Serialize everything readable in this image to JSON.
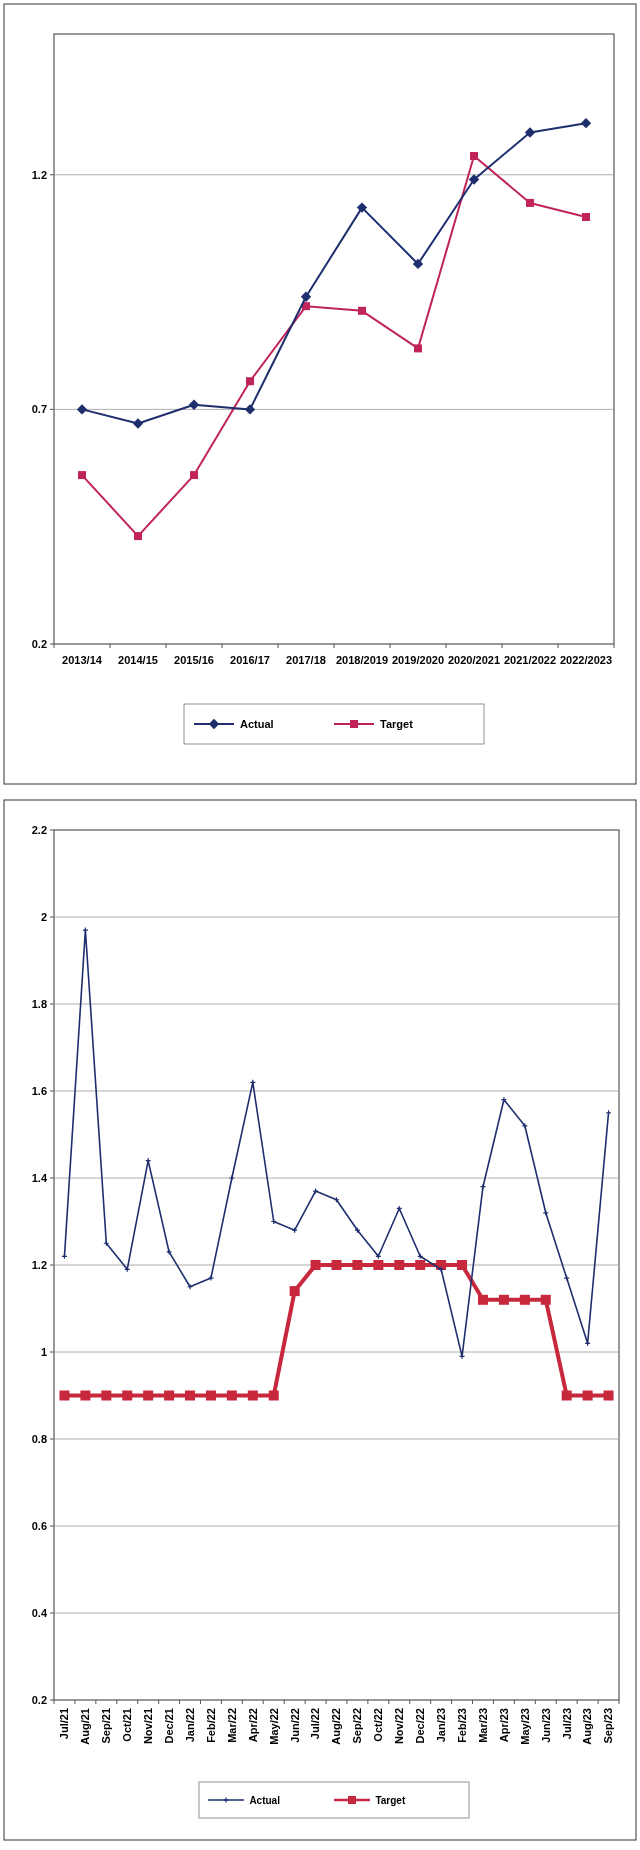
{
  "chart_data": [
    {
      "type": "line",
      "categories": [
        "2013/14",
        "2014/15",
        "2015/16",
        "2016/17",
        "2017/18",
        "2018/2019",
        "2019/2020",
        "2020/2021",
        "2021/2022",
        "2022/2023"
      ],
      "series": [
        {
          "name": "Actual",
          "color": "#1f2f6e",
          "marker": "diamond",
          "values": [
            0.7,
            0.67,
            0.71,
            0.7,
            0.94,
            1.13,
            1.01,
            1.19,
            1.29,
            1.31
          ]
        },
        {
          "name": "Target",
          "color": "#c0245a",
          "marker": "square",
          "values": [
            0.56,
            0.43,
            0.56,
            0.76,
            0.92,
            0.91,
            0.83,
            1.24,
            1.14,
            1.11
          ]
        }
      ],
      "ylim": [
        0.2,
        1.5
      ],
      "yticks": [
        0.2,
        0.7,
        1.2
      ],
      "grid": "y",
      "legend": "bottom"
    },
    {
      "type": "line",
      "categories": [
        "Jul/21",
        "Aug/21",
        "Sep/21",
        "Oct/21",
        "Nov/21",
        "Dec/21",
        "Jan/22",
        "Feb/22",
        "Mar/22",
        "Apr/22",
        "May/22",
        "Jun/22",
        "Jul/22",
        "Aug/22",
        "Sep/22",
        "Oct/22",
        "Nov/22",
        "Dec/22",
        "Jan/23",
        "Feb/23",
        "Mar/23",
        "Apr/23",
        "May/23",
        "Jun/23",
        "Jul/23",
        "Aug/23",
        "Sep/23"
      ],
      "series": [
        {
          "name": "Actual",
          "color": "#1f2f6e",
          "marker": "cross",
          "values": [
            1.22,
            1.97,
            1.25,
            1.19,
            1.44,
            1.23,
            1.15,
            1.17,
            1.4,
            1.62,
            1.3,
            1.28,
            1.37,
            1.35,
            1.28,
            1.22,
            1.33,
            1.22,
            1.19,
            0.99,
            1.38,
            1.58,
            1.52,
            1.32,
            1.17,
            1.02,
            1.55
          ]
        },
        {
          "name": "Target",
          "color": "#c8283c",
          "marker": "square",
          "values": [
            0.9,
            0.9,
            0.9,
            0.9,
            0.9,
            0.9,
            0.9,
            0.9,
            0.9,
            0.9,
            0.9,
            1.14,
            1.2,
            1.2,
            1.2,
            1.2,
            1.2,
            1.2,
            1.2,
            1.2,
            1.12,
            1.12,
            1.12,
            1.12,
            0.9,
            0.9,
            0.9
          ]
        }
      ],
      "ylim": [
        0.2,
        2.2
      ],
      "yticks": [
        0.2,
        0.4,
        0.6,
        0.8,
        1,
        1.2,
        1.4,
        1.6,
        1.8,
        2,
        2.2
      ],
      "grid": "y",
      "legend": "bottom"
    }
  ]
}
